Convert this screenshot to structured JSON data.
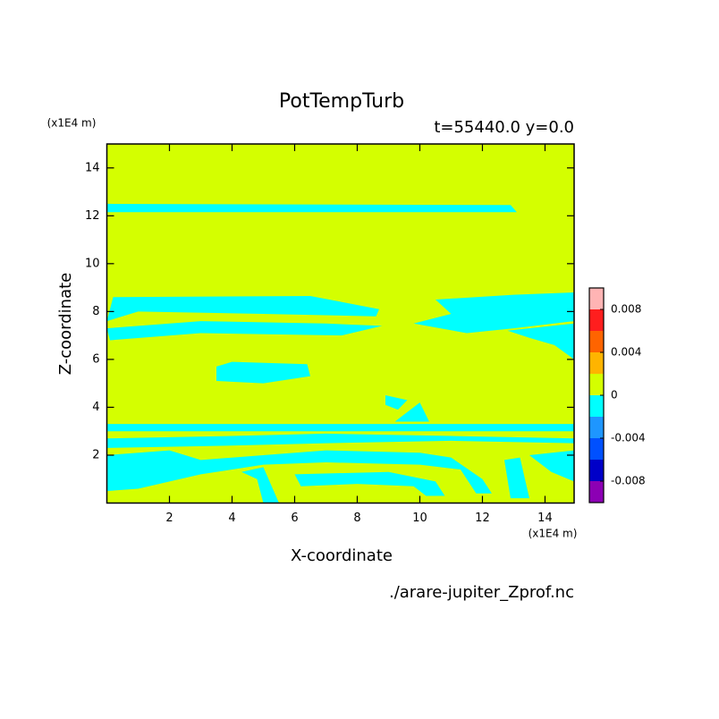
{
  "chart_data": {
    "type": "contour",
    "title": "PotTempTurb",
    "subtitle": "t=55440.0 y=0.0",
    "x_label": "X-coordinate",
    "y_label": "Z-coordinate",
    "x_unit": "(x1E4 m)",
    "y_unit": "(x1E4 m)",
    "file_label": "./arare-jupiter_Zprof.nc",
    "xlim": [
      0,
      14.93
    ],
    "ylim": [
      0,
      15
    ],
    "xticks": [
      2,
      4,
      6,
      8,
      10,
      12,
      14
    ],
    "yticks": [
      2,
      4,
      6,
      8,
      10,
      12,
      14
    ],
    "background_color": "#d4ff00",
    "colorbar": {
      "bounds": [
        -0.01,
        -0.008,
        -0.006,
        -0.004,
        -0.002,
        0,
        0.002,
        0.004,
        0.006,
        0.008,
        0.01
      ],
      "colors": [
        "#8c00b4",
        "#0000c8",
        "#0050ff",
        "#1e96ff",
        "#00ffff",
        "#d4ff00",
        "#ffb400",
        "#ff6400",
        "#ff1e1e",
        "#ffb4b4"
      ],
      "ticks": [
        -0.008,
        -0.004,
        0,
        0.004,
        0.008
      ]
    },
    "contours": [
      {
        "color": "#00ffff",
        "polygons": [
          [
            [
              0,
              12.15
            ],
            [
              13.1,
              12.15
            ],
            [
              12.9,
              12.45
            ],
            [
              0,
              12.5
            ]
          ],
          [
            [
              0.2,
              8.6
            ],
            [
              6.5,
              8.65
            ],
            [
              8.7,
              8.1
            ],
            [
              8.6,
              7.8
            ],
            [
              5,
              7.9
            ],
            [
              1,
              8.0
            ],
            [
              0,
              7.6
            ]
          ],
          [
            [
              0,
              7.3
            ],
            [
              3,
              7.6
            ],
            [
              7,
              7.5
            ],
            [
              8.8,
              7.4
            ],
            [
              7.5,
              7.0
            ],
            [
              3,
              7.1
            ],
            [
              0.1,
              6.8
            ]
          ],
          [
            [
              10.5,
              8.5
            ],
            [
              13,
              8.7
            ],
            [
              14.93,
              8.8
            ],
            [
              14.93,
              7.6
            ],
            [
              13,
              7.3
            ],
            [
              11.5,
              7.1
            ],
            [
              9.8,
              7.5
            ],
            [
              11,
              7.9
            ]
          ],
          [
            [
              12.8,
              7.2
            ],
            [
              14.93,
              7.5
            ],
            [
              14.93,
              6.0
            ],
            [
              14.3,
              6.6
            ],
            [
              13.5,
              6.9
            ]
          ],
          [
            [
              3.5,
              5.7
            ],
            [
              4,
              5.9
            ],
            [
              6.4,
              5.8
            ],
            [
              6.5,
              5.3
            ],
            [
              5,
              5.0
            ],
            [
              3.5,
              5.1
            ]
          ],
          [
            [
              8.9,
              4.5
            ],
            [
              9.6,
              4.3
            ],
            [
              9.3,
              3.9
            ],
            [
              8.9,
              4.1
            ]
          ],
          [
            [
              0,
              3.3
            ],
            [
              14.93,
              3.3
            ],
            [
              14.93,
              3.0
            ],
            [
              0,
              3.0
            ]
          ],
          [
            [
              9.2,
              3.4
            ],
            [
              10,
              4.2
            ],
            [
              10.3,
              3.4
            ]
          ],
          [
            [
              0,
              2.7
            ],
            [
              4,
              2.8
            ],
            [
              7,
              2.9
            ],
            [
              11,
              2.8
            ],
            [
              14.93,
              2.7
            ],
            [
              14.93,
              2.5
            ],
            [
              11,
              2.6
            ],
            [
              7,
              2.5
            ],
            [
              4,
              2.4
            ],
            [
              0,
              2.3
            ]
          ],
          [
            [
              0,
              2.0
            ],
            [
              2,
              2.2
            ],
            [
              3,
              1.8
            ],
            [
              5,
              2.0
            ],
            [
              7,
              2.2
            ],
            [
              10,
              2.1
            ],
            [
              11,
              1.9
            ],
            [
              12,
              1.0
            ],
            [
              12.3,
              0.4
            ],
            [
              11.8,
              0.4
            ],
            [
              11.3,
              1.4
            ],
            [
              10,
              1.6
            ],
            [
              7,
              1.7
            ],
            [
              5,
              1.6
            ],
            [
              3,
              1.2
            ],
            [
              1,
              0.6
            ],
            [
              0,
              0.5
            ]
          ],
          [
            [
              4.3,
              1.3
            ],
            [
              5,
              1.5
            ],
            [
              5.5,
              0
            ],
            [
              5,
              0
            ],
            [
              4.8,
              1.0
            ]
          ],
          [
            [
              6,
              1.2
            ],
            [
              9,
              1.3
            ],
            [
              10.5,
              0.9
            ],
            [
              10.8,
              0.3
            ],
            [
              10.2,
              0.3
            ],
            [
              9.8,
              0.7
            ],
            [
              8,
              0.8
            ],
            [
              6.2,
              0.7
            ]
          ],
          [
            [
              13.5,
              2.0
            ],
            [
              14.93,
              2.2
            ],
            [
              14.93,
              0.9
            ],
            [
              14.2,
              1.3
            ]
          ],
          [
            [
              12.7,
              1.8
            ],
            [
              13.2,
              1.9
            ],
            [
              13.5,
              0.2
            ],
            [
              12.9,
              0.2
            ]
          ]
        ]
      }
    ]
  }
}
